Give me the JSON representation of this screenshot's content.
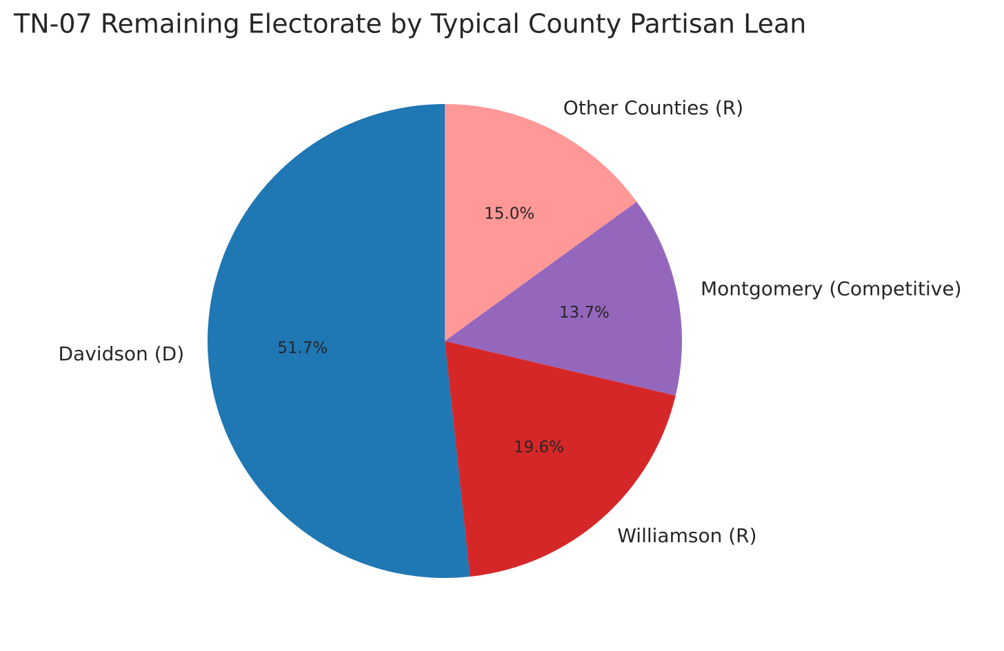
{
  "chart_data": {
    "type": "pie",
    "title": "TN-07 Remaining Electorate by Typical County Partisan Lean",
    "categories": [
      "Davidson (D)",
      "Williamson (R)",
      "Montgomery (Competitive)",
      "Other Counties (R)"
    ],
    "values": [
      51.7,
      19.6,
      13.7,
      15.0
    ],
    "value_labels": [
      "51.7%",
      "19.6%",
      "13.7%",
      "15.0%"
    ],
    "colors": [
      "#1f77b4",
      "#d62728",
      "#9467bd",
      "#ff9896"
    ]
  }
}
